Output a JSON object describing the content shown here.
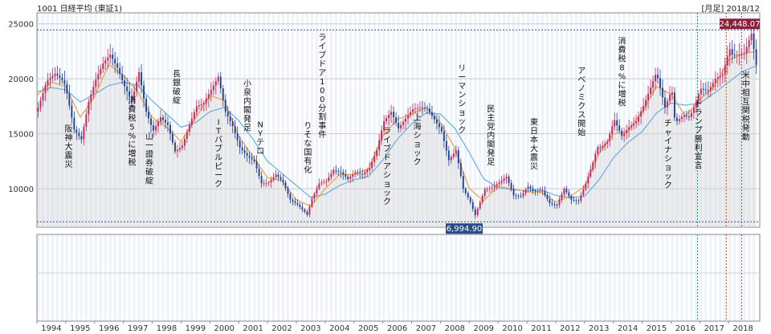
{
  "header": {
    "code_name": "1001 日経平均 (東証1)",
    "period_date": "[月足] 2018/12"
  },
  "chart_data": {
    "type": "candlestick",
    "title": "1001 日経平均 (東証1)",
    "period": "月足",
    "ylim": [
      6500,
      26000
    ],
    "y_ticks": [
      10000,
      15000,
      20000,
      25000
    ],
    "x_ticks": [
      "1994",
      "1995",
      "1996",
      "1997",
      "1998",
      "1999",
      "2000",
      "2001",
      "2002",
      "2003",
      "2004",
      "2005",
      "2006",
      "2007",
      "2008",
      "2009",
      "2010",
      "2011",
      "2012",
      "2013",
      "2014",
      "2015",
      "2016",
      "2017",
      "2018"
    ],
    "value_labels": {
      "high": "24,448.07",
      "low": "6,994.90"
    },
    "series": [
      {
        "name": "Close (monthly)",
        "points": [
          [
            1994.0,
            17369
          ],
          [
            1994.3,
            19800
          ],
          [
            1994.6,
            20500
          ],
          [
            1994.9,
            19700
          ],
          [
            1995.0,
            18650
          ],
          [
            1995.25,
            15380
          ],
          [
            1995.5,
            14500
          ],
          [
            1995.75,
            17900
          ],
          [
            1995.99,
            19868
          ],
          [
            1996.25,
            21400
          ],
          [
            1996.5,
            22200
          ],
          [
            1996.75,
            21000
          ],
          [
            1996.99,
            19361
          ],
          [
            1997.25,
            18000
          ],
          [
            1997.5,
            20600
          ],
          [
            1997.75,
            17000
          ],
          [
            1997.99,
            15258
          ],
          [
            1998.25,
            16500
          ],
          [
            1998.5,
            15800
          ],
          [
            1998.75,
            13400
          ],
          [
            1998.99,
            13842
          ],
          [
            1999.25,
            15800
          ],
          [
            1999.5,
            17500
          ],
          [
            1999.75,
            17800
          ],
          [
            1999.99,
            18934
          ],
          [
            2000.25,
            20200
          ],
          [
            2000.5,
            17000
          ],
          [
            2000.75,
            15700
          ],
          [
            2000.99,
            13786
          ],
          [
            2001.25,
            13000
          ],
          [
            2001.5,
            12500
          ],
          [
            2001.75,
            10500
          ],
          [
            2001.99,
            10543
          ],
          [
            2002.25,
            11300
          ],
          [
            2002.5,
            10600
          ],
          [
            2002.75,
            9000
          ],
          [
            2002.99,
            8579
          ],
          [
            2003.25,
            7900
          ],
          [
            2003.33,
            7608
          ],
          [
            2003.5,
            9100
          ],
          [
            2003.75,
            10500
          ],
          [
            2003.99,
            10677
          ],
          [
            2004.25,
            11700
          ],
          [
            2004.5,
            11500
          ],
          [
            2004.75,
            10900
          ],
          [
            2004.99,
            11489
          ],
          [
            2005.25,
            11300
          ],
          [
            2005.5,
            11900
          ],
          [
            2005.75,
            13500
          ],
          [
            2005.99,
            16111
          ],
          [
            2006.25,
            17000
          ],
          [
            2006.5,
            15500
          ],
          [
            2006.75,
            16400
          ],
          [
            2006.99,
            17226
          ],
          [
            2007.25,
            17400
          ],
          [
            2007.5,
            17300
          ],
          [
            2007.75,
            16300
          ],
          [
            2007.99,
            15307
          ],
          [
            2008.25,
            12600
          ],
          [
            2008.5,
            13500
          ],
          [
            2008.75,
            10000
          ],
          [
            2008.99,
            8860
          ],
          [
            2009.16,
            7568
          ],
          [
            2009.5,
            9958
          ],
          [
            2009.75,
            10100
          ],
          [
            2009.99,
            10546
          ],
          [
            2010.25,
            11100
          ],
          [
            2010.5,
            9400
          ],
          [
            2010.75,
            9300
          ],
          [
            2010.99,
            10229
          ],
          [
            2011.2,
            9755
          ],
          [
            2011.5,
            9800
          ],
          [
            2011.75,
            8700
          ],
          [
            2011.99,
            8455
          ],
          [
            2012.25,
            10000
          ],
          [
            2012.5,
            9000
          ],
          [
            2012.75,
            8900
          ],
          [
            2012.99,
            10395
          ],
          [
            2013.25,
            12400
          ],
          [
            2013.4,
            13800
          ],
          [
            2013.5,
            13700
          ],
          [
            2013.75,
            14300
          ],
          [
            2013.99,
            16291
          ],
          [
            2014.25,
            14800
          ],
          [
            2014.5,
            15600
          ],
          [
            2014.75,
            16100
          ],
          [
            2014.99,
            17451
          ],
          [
            2015.25,
            19200
          ],
          [
            2015.45,
            20600
          ],
          [
            2015.75,
            17400
          ],
          [
            2015.99,
            19034
          ],
          [
            2016.1,
            16000
          ],
          [
            2016.4,
            16700
          ],
          [
            2016.6,
            16500
          ],
          [
            2016.75,
            17400
          ],
          [
            2016.99,
            19114
          ],
          [
            2017.25,
            18900
          ],
          [
            2017.5,
            20000
          ],
          [
            2017.75,
            20400
          ],
          [
            2017.99,
            22765
          ],
          [
            2018.1,
            22100
          ],
          [
            2018.25,
            22200
          ],
          [
            2018.5,
            22300
          ],
          [
            2018.75,
            24120
          ],
          [
            2018.99,
            20015
          ]
        ]
      },
      {
        "name": "MA short",
        "points": [
          [
            1994.0,
            18500
          ],
          [
            1994.5,
            19700
          ],
          [
            1995.0,
            19300
          ],
          [
            1995.5,
            16500
          ],
          [
            1996.0,
            18400
          ],
          [
            1996.5,
            21300
          ],
          [
            1997.0,
            20300
          ],
          [
            1997.5,
            18800
          ],
          [
            1998.0,
            16500
          ],
          [
            1998.5,
            15600
          ],
          [
            1999.0,
            14300
          ],
          [
            1999.5,
            16400
          ],
          [
            2000.0,
            18500
          ],
          [
            2000.5,
            18000
          ],
          [
            2001.0,
            14800
          ],
          [
            2001.5,
            12900
          ],
          [
            2002.0,
            11000
          ],
          [
            2002.5,
            10700
          ],
          [
            2003.0,
            9000
          ],
          [
            2003.5,
            8400
          ],
          [
            2004.0,
            10000
          ],
          [
            2004.5,
            11300
          ],
          [
            2005.0,
            11300
          ],
          [
            2005.5,
            11800
          ],
          [
            2006.0,
            14800
          ],
          [
            2006.5,
            16300
          ],
          [
            2007.0,
            16800
          ],
          [
            2007.5,
            17400
          ],
          [
            2008.0,
            16000
          ],
          [
            2008.5,
            13700
          ],
          [
            2009.0,
            10000
          ],
          [
            2009.5,
            8900
          ],
          [
            2010.0,
            10200
          ],
          [
            2010.5,
            10000
          ],
          [
            2011.0,
            9700
          ],
          [
            2011.5,
            9700
          ],
          [
            2012.0,
            8800
          ],
          [
            2012.5,
            9300
          ],
          [
            2013.0,
            10200
          ],
          [
            2013.5,
            13200
          ],
          [
            2014.0,
            15000
          ],
          [
            2014.5,
            15200
          ],
          [
            2015.0,
            17000
          ],
          [
            2015.5,
            19300
          ],
          [
            2016.0,
            18600
          ],
          [
            2016.5,
            16600
          ],
          [
            2017.0,
            18100
          ],
          [
            2017.5,
            19300
          ],
          [
            2018.0,
            21700
          ],
          [
            2018.5,
            22300
          ],
          [
            2018.99,
            22500
          ]
        ]
      },
      {
        "name": "MA long",
        "points": [
          [
            1994.0,
            18800
          ],
          [
            1994.5,
            19200
          ],
          [
            1995.0,
            19000
          ],
          [
            1995.5,
            17900
          ],
          [
            1996.0,
            18600
          ],
          [
            1996.5,
            19400
          ],
          [
            1997.0,
            19700
          ],
          [
            1997.5,
            19400
          ],
          [
            1998.0,
            18000
          ],
          [
            1998.5,
            16800
          ],
          [
            1999.0,
            15600
          ],
          [
            1999.5,
            16000
          ],
          [
            2000.0,
            17000
          ],
          [
            2000.5,
            17400
          ],
          [
            2001.0,
            16200
          ],
          [
            2001.5,
            14500
          ],
          [
            2002.0,
            12500
          ],
          [
            2002.5,
            11400
          ],
          [
            2003.0,
            10300
          ],
          [
            2003.5,
            9200
          ],
          [
            2004.0,
            9500
          ],
          [
            2004.5,
            10300
          ],
          [
            2005.0,
            10800
          ],
          [
            2005.5,
            11100
          ],
          [
            2006.0,
            12600
          ],
          [
            2006.5,
            14500
          ],
          [
            2007.0,
            15900
          ],
          [
            2007.5,
            16900
          ],
          [
            2008.0,
            16800
          ],
          [
            2008.5,
            15500
          ],
          [
            2009.0,
            13300
          ],
          [
            2009.5,
            10900
          ],
          [
            2010.0,
            10100
          ],
          [
            2010.5,
            9900
          ],
          [
            2011.0,
            9800
          ],
          [
            2011.5,
            9900
          ],
          [
            2012.0,
            9400
          ],
          [
            2012.5,
            9200
          ],
          [
            2013.0,
            9300
          ],
          [
            2013.5,
            10800
          ],
          [
            2014.0,
            12800
          ],
          [
            2014.5,
            14200
          ],
          [
            2015.0,
            15200
          ],
          [
            2015.5,
            16900
          ],
          [
            2016.0,
            17800
          ],
          [
            2016.5,
            17600
          ],
          [
            2017.0,
            17800
          ],
          [
            2017.5,
            18700
          ],
          [
            2018.0,
            19700
          ],
          [
            2018.5,
            20700
          ],
          [
            2018.99,
            21200
          ]
        ]
      }
    ],
    "annotations": [
      {
        "text": "阪神大震災",
        "x": 1995.1,
        "y": 15200
      },
      {
        "text": "消費税5%に増税",
        "x": 1997.3,
        "y": 17800
      },
      {
        "text": "山一證券破綻",
        "x": 1997.9,
        "y": 14500
      },
      {
        "text": "長銀破綻",
        "x": 1998.85,
        "y": 20200
      },
      {
        "text": "ITバブルピーク",
        "x": 2000.3,
        "y": 15800
      },
      {
        "text": "小泉内閣発足",
        "x": 2001.3,
        "y": 19300
      },
      {
        "text": "NYテロ",
        "x": 2001.75,
        "y": 15600
      },
      {
        "text": "りそな国有化",
        "x": 2003.4,
        "y": 15500
      },
      {
        "text": "ライブドア100分割事件",
        "x": 2003.9,
        "y": 23500
      },
      {
        "text": "ライブドアショック",
        "x": 2006.15,
        "y": 15000
      },
      {
        "text": "上海ショック",
        "x": 2007.2,
        "y": 16200
      },
      {
        "text": "リーマンショック",
        "x": 2008.75,
        "y": 20700
      },
      {
        "text": "民主党内閣発足",
        "x": 2009.75,
        "y": 17000
      },
      {
        "text": "東日本大震災",
        "x": 2011.25,
        "y": 15800
      },
      {
        "text": "アベノミクス開始",
        "x": 2012.9,
        "y": 20500
      },
      {
        "text": "消費税8%に増税",
        "x": 2014.3,
        "y": 23200
      },
      {
        "text": "チャイナショック",
        "x": 2015.9,
        "y": 15700
      },
      {
        "text": "トランプ勝利宣言",
        "x": 2016.95,
        "y": 17500
      },
      {
        "text": "米中相互関税発動",
        "x": 2018.6,
        "y": 20100
      }
    ],
    "grid": true,
    "legend": "none"
  },
  "colors": {
    "up_candle": "#c8265a",
    "down_candle": "#1f3f9c",
    "ma_short": "#f0a040",
    "ma_long": "#6aaee0",
    "panel_border": "#888888",
    "stripe": "#dfe9f7",
    "high_label_bg": "#8a1f3c",
    "low_label_bg": "#2a4a8a",
    "ref_line": "#3a4a9a"
  }
}
